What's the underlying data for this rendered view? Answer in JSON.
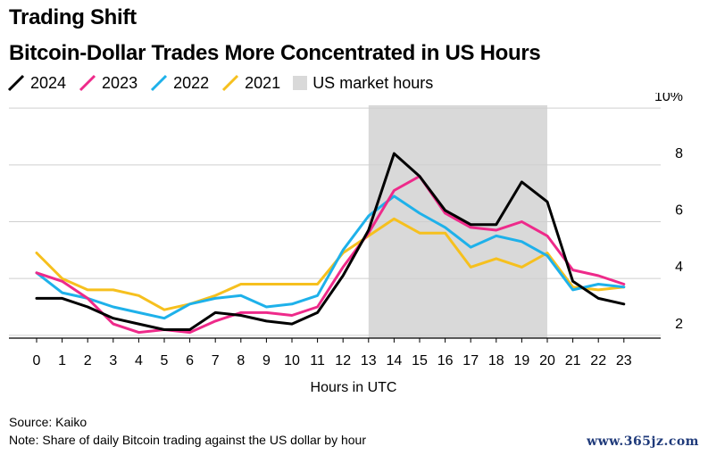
{
  "headline": "Trading Shift",
  "chart_data": {
    "type": "line",
    "title": "Bitcoin-Dollar Trades More Concentrated in US Hours",
    "xlabel": "Hours in UTC",
    "ylabel": "",
    "x": [
      0,
      1,
      2,
      3,
      4,
      5,
      6,
      7,
      8,
      9,
      10,
      11,
      12,
      13,
      14,
      15,
      16,
      17,
      18,
      19,
      20,
      21,
      22,
      23
    ],
    "ylim": [
      1.9,
      10.1
    ],
    "y_ticks": [
      2,
      4,
      6,
      8,
      10
    ],
    "y_tick_labels": [
      "2",
      "4",
      "6",
      "8",
      "10%"
    ],
    "grid": true,
    "legend_position": "top-left",
    "shaded_region": {
      "label": "US market hours",
      "x_start": 13,
      "x_end": 20,
      "color": "#d9d9d9"
    },
    "series": [
      {
        "name": "2024",
        "color": "#000000",
        "values": [
          3.3,
          3.3,
          3.0,
          2.6,
          2.4,
          2.2,
          2.2,
          2.8,
          2.7,
          2.5,
          2.4,
          2.8,
          4.1,
          5.7,
          8.4,
          7.6,
          6.4,
          5.9,
          5.9,
          7.4,
          6.7,
          3.9,
          3.3,
          3.1
        ]
      },
      {
        "name": "2023",
        "color": "#ee2a8a",
        "values": [
          4.2,
          3.9,
          3.3,
          2.4,
          2.1,
          2.2,
          2.1,
          2.5,
          2.8,
          2.8,
          2.7,
          3.0,
          4.4,
          5.6,
          7.1,
          7.6,
          6.3,
          5.8,
          5.7,
          6.0,
          5.5,
          4.3,
          4.1,
          3.8
        ]
      },
      {
        "name": "2022",
        "color": "#1eb1ea",
        "values": [
          4.2,
          3.5,
          3.3,
          3.0,
          2.8,
          2.6,
          3.1,
          3.3,
          3.4,
          3.0,
          3.1,
          3.4,
          5.0,
          6.2,
          6.9,
          6.3,
          5.8,
          5.1,
          5.5,
          5.3,
          4.8,
          3.6,
          3.8,
          3.7
        ]
      },
      {
        "name": "2021",
        "color": "#f6c01e",
        "values": [
          4.9,
          4.0,
          3.6,
          3.6,
          3.4,
          2.9,
          3.1,
          3.4,
          3.8,
          3.8,
          3.8,
          3.8,
          4.9,
          5.5,
          6.1,
          5.6,
          5.6,
          4.4,
          4.7,
          4.4,
          4.9,
          3.7,
          3.6,
          3.7
        ]
      }
    ]
  },
  "source": "Source: Kaiko",
  "note": "Note: Share of daily Bitcoin trading against the US dollar by hour",
  "watermark": "www.365jz.com"
}
